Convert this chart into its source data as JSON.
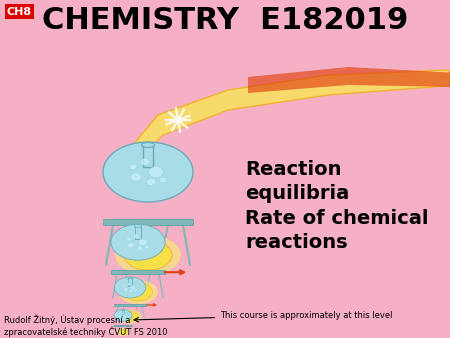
{
  "bg_color": "#f5b0c5",
  "title_text": "CHEMISTRY  E182019",
  "title_color": "#000000",
  "title_fontsize": 22,
  "ch8_label": "CH8",
  "ch8_bg": "#dd0000",
  "ch8_fg": "#ffffff",
  "ch8_fontsize": 8,
  "main_text": "Reaction\nequilibria\nRate of chemical\nreactions",
  "main_text_color": "#000000",
  "main_text_fontsize": 14,
  "footnote_text": "Rudolf Žitný, Ústav procesní a\nzpracovatelské techniky ČVUT FS 2010",
  "footnote_fontsize": 6,
  "footnote_color": "#000000",
  "arrow_text": "This course is approximately at this level",
  "arrow_text_fontsize": 6,
  "flask_color": "#a8dde8",
  "flask_edge": "#6aaabb",
  "stand_color": "#80b8b8",
  "flame_yellow": "#f8e060",
  "flame_orange": "#f08020",
  "flame_red": "#e03010",
  "spark_color": "#ffffff"
}
